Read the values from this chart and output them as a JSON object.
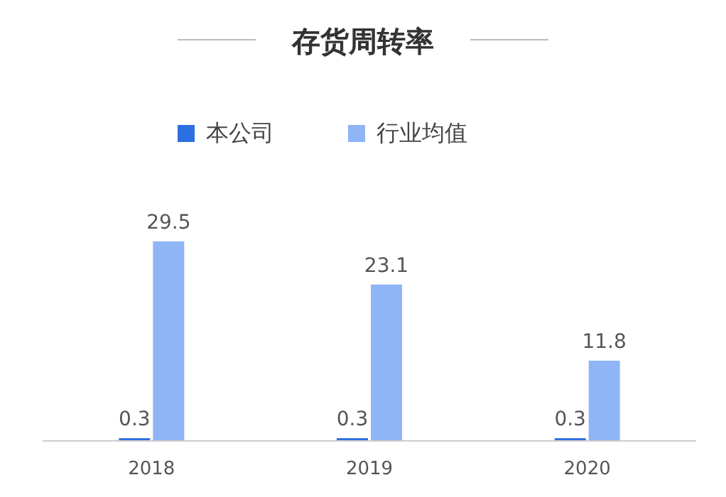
{
  "chart_data": {
    "type": "bar",
    "title": "存货周转率",
    "categories": [
      "2018",
      "2019",
      "2020"
    ],
    "series": [
      {
        "name": "本公司",
        "color": "#2c6fe0",
        "values": [
          0.3,
          0.3,
          0.3
        ]
      },
      {
        "name": "行业均值",
        "color": "#8fb5f7",
        "values": [
          29.5,
          23.1,
          11.8
        ]
      }
    ],
    "data_labels": true,
    "legend": "top",
    "grid": false
  }
}
